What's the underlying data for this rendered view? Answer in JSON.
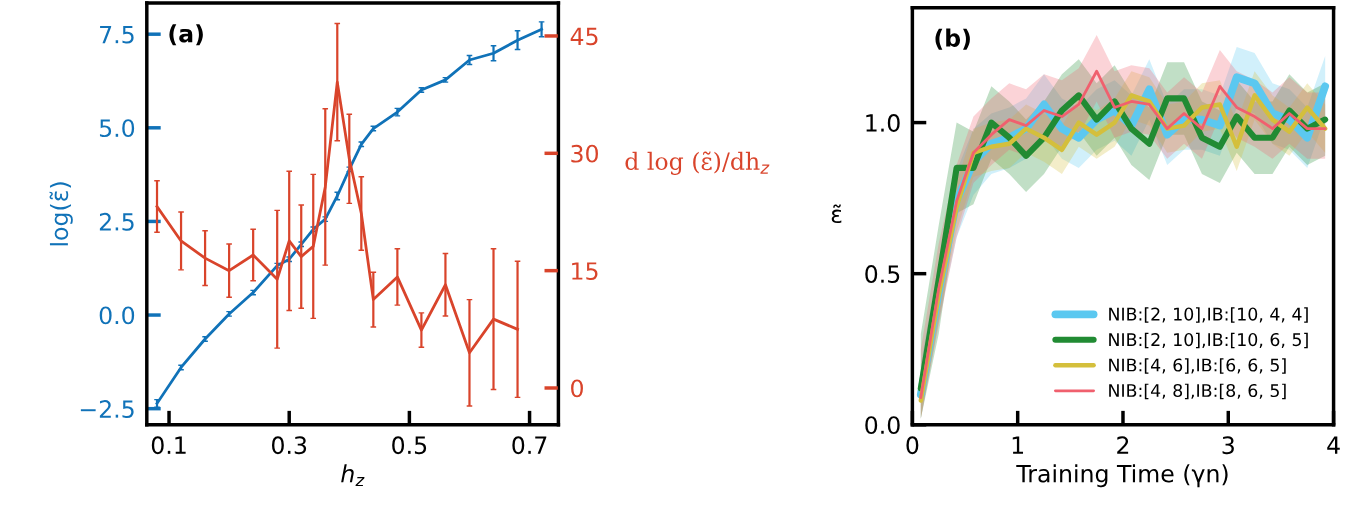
{
  "chart_data": [
    {
      "type": "line",
      "xlabel": "h$_{z}$",
      "ylabel": "log(ε̃)",
      "y2label": "d log (ε̃)/dh$_{z}$",
      "annotations": [
        "(a)"
      ],
      "x": [
        0.08,
        0.12,
        0.16,
        0.2,
        0.24,
        0.28,
        0.3,
        0.32,
        0.34,
        0.36,
        0.38,
        0.4,
        0.42,
        0.44,
        0.48,
        0.52,
        0.56,
        0.6,
        0.64,
        0.68,
        0.72
      ],
      "xlim": [
        0.063,
        0.748
      ],
      "xticks": [
        0.1,
        0.3,
        0.5,
        0.7
      ],
      "ylim": [
        -2.93,
        8.33
      ],
      "yticks": [
        {
          "value": -2.5,
          "label": "−2.5"
        },
        {
          "value": 0,
          "label": "0.0"
        },
        {
          "value": 2.5,
          "label": "2.5"
        },
        {
          "value": 5,
          "label": "5.0"
        },
        {
          "value": 7.5,
          "label": "7.5"
        }
      ],
      "y2lim": [
        -4.7,
        49.2
      ],
      "y2ticks": [
        0,
        15,
        30,
        45
      ],
      "series": [
        {
          "color": "#1072b8",
          "axis": "y",
          "values": [
            -2.36,
            -1.4,
            -0.64,
            0.03,
            0.6,
            1.32,
            1.49,
            1.89,
            2.29,
            2.56,
            3.18,
            3.89,
            4.56,
            4.98,
            5.42,
            6.01,
            6.28,
            6.81,
            6.99,
            7.34,
            7.63
          ],
          "errors": [
            0.1,
            0.06,
            0.06,
            0.06,
            0.06,
            0.06,
            0.06,
            0.06,
            0.06,
            0.06,
            0.1,
            0.06,
            0.06,
            0.06,
            0.1,
            0.06,
            0.06,
            0.12,
            0.2,
            0.25,
            0.2
          ]
        },
        {
          "color": "#d9442b",
          "axis": "y2",
          "x": [
            0.08,
            0.12,
            0.16,
            0.2,
            0.24,
            0.28,
            0.3,
            0.32,
            0.34,
            0.36,
            0.38,
            0.4,
            0.42,
            0.44,
            0.48,
            0.52,
            0.56,
            0.6,
            0.64,
            0.68
          ],
          "values": [
            23.2,
            18.8,
            16.6,
            15.0,
            17.0,
            13.9,
            18.8,
            16.8,
            18.1,
            25.7,
            39.1,
            29.3,
            22.3,
            11.3,
            14.2,
            7.4,
            13.2,
            4.5,
            8.8,
            7.5
          ],
          "errors": [
            3.3,
            3.7,
            3.5,
            3.4,
            3.3,
            8.8,
            8.9,
            6.6,
            9.2,
            10.0,
            7.5,
            5.7,
            4.7,
            3.5,
            3.6,
            2.2,
            4.0,
            6.8,
            9.0,
            8.7
          ]
        }
      ]
    },
    {
      "type": "line",
      "xlabel": "Training Time (γn)",
      "ylabel": "ε̃",
      "annotations": [
        "(b)"
      ],
      "legend": "bottom right",
      "x": [
        0.08,
        0.25,
        0.42,
        0.58,
        0.75,
        0.92,
        1.08,
        1.25,
        1.42,
        1.58,
        1.75,
        1.92,
        2.08,
        2.25,
        2.42,
        2.58,
        2.75,
        2.92,
        3.08,
        3.25,
        3.42,
        3.58,
        3.75,
        3.92
      ],
      "xlim": [
        0,
        4
      ],
      "xticks": [
        0,
        1,
        2,
        3,
        4
      ],
      "ylim": [
        0,
        1.38
      ],
      "yticks": [
        {
          "value": 0,
          "label": "0.0"
        },
        {
          "value": 0.5,
          "label": "0.5"
        },
        {
          "value": 1,
          "label": "1.0"
        }
      ],
      "series": [
        {
          "name": "NIB:[2, 10],IB:[10, 4, 4]",
          "color": "#5bc8f0",
          "values": [
            0.1,
            0.44,
            0.74,
            0.87,
            0.93,
            0.95,
            0.98,
            1.06,
            0.98,
            0.95,
            1.01,
            1.04,
            0.99,
            1.11,
            0.96,
            1.01,
            1.01,
            0.99,
            1.15,
            1.13,
            1.03,
            1.01,
            0.95,
            1.12
          ],
          "lower": [
            0.02,
            0.34,
            0.62,
            0.76,
            0.83,
            0.85,
            0.88,
            0.96,
            0.88,
            0.85,
            0.91,
            0.94,
            0.89,
            1.01,
            0.86,
            0.91,
            0.91,
            0.89,
            1.05,
            1.03,
            0.93,
            0.91,
            0.85,
            1.02
          ],
          "upper": [
            0.2,
            0.54,
            0.84,
            0.98,
            1.03,
            1.05,
            1.08,
            1.16,
            1.08,
            1.05,
            1.11,
            1.14,
            1.09,
            1.21,
            1.06,
            1.11,
            1.11,
            1.09,
            1.25,
            1.23,
            1.13,
            1.11,
            1.05,
            1.22
          ]
        },
        {
          "name": "NIB:[2, 10],IB:[10, 6, 5]",
          "color": "#218b33",
          "values": [
            0.12,
            0.48,
            0.85,
            0.85,
            1.0,
            0.95,
            0.89,
            0.95,
            1.04,
            1.09,
            1.01,
            1.07,
            0.98,
            0.93,
            1.08,
            1.08,
            0.95,
            0.92,
            1.02,
            0.95,
            0.95,
            1.04,
            0.98,
            1.01
          ],
          "lower": [
            0.02,
            0.3,
            0.7,
            0.73,
            0.88,
            0.83,
            0.77,
            0.83,
            0.92,
            0.97,
            0.89,
            0.95,
            0.86,
            0.81,
            0.96,
            0.96,
            0.83,
            0.8,
            0.9,
            0.83,
            0.83,
            0.92,
            0.86,
            0.89
          ],
          "upper": [
            0.3,
            0.66,
            1.0,
            0.97,
            1.12,
            1.07,
            1.01,
            1.07,
            1.16,
            1.21,
            1.13,
            1.19,
            1.1,
            1.05,
            1.2,
            1.2,
            1.07,
            1.04,
            1.14,
            1.07,
            1.07,
            1.16,
            1.1,
            1.13
          ]
        },
        {
          "name": "NIB:[4, 6],IB:[6, 6, 5]",
          "color": "#d4bf3c",
          "values": [
            0.08,
            0.43,
            0.72,
            0.9,
            0.92,
            0.93,
            0.98,
            0.95,
            0.91,
            1.0,
            0.96,
            1.0,
            1.09,
            1.07,
            0.98,
            0.99,
            1.05,
            1.06,
            0.92,
            1.09,
            1.01,
            0.97,
            1.05,
            0.98
          ],
          "lower": [
            0.02,
            0.35,
            0.64,
            0.82,
            0.84,
            0.85,
            0.9,
            0.87,
            0.83,
            0.92,
            0.88,
            0.92,
            1.01,
            0.99,
            0.9,
            0.91,
            0.97,
            0.98,
            0.84,
            1.01,
            0.93,
            0.89,
            0.97,
            0.9
          ],
          "upper": [
            0.16,
            0.51,
            0.8,
            0.98,
            1.0,
            1.01,
            1.06,
            1.03,
            0.99,
            1.08,
            1.04,
            1.08,
            1.17,
            1.15,
            1.06,
            1.07,
            1.13,
            1.14,
            1.0,
            1.17,
            1.09,
            1.05,
            1.13,
            1.06
          ]
        },
        {
          "name": "NIB:[4, 8],IB:[8, 6, 5]",
          "color": "#f0606e",
          "values": [
            0.09,
            0.45,
            0.74,
            0.9,
            0.96,
            1.01,
            0.99,
            1.04,
            1.02,
            1.06,
            1.17,
            1.05,
            1.07,
            1.06,
            0.98,
            1.03,
            0.98,
            1.12,
            1.05,
            1.02,
            0.98,
            1.03,
            0.98,
            0.98
          ],
          "lower": [
            0.02,
            0.33,
            0.62,
            0.8,
            0.86,
            0.91,
            0.89,
            0.94,
            0.92,
            0.96,
            1.07,
            0.95,
            0.97,
            0.96,
            0.88,
            0.93,
            0.88,
            1.02,
            0.95,
            0.92,
            0.88,
            0.93,
            0.88,
            0.88
          ],
          "upper": [
            0.25,
            0.6,
            0.86,
            1.02,
            1.08,
            1.13,
            1.11,
            1.16,
            1.14,
            1.18,
            1.29,
            1.17,
            1.19,
            1.18,
            1.1,
            1.15,
            1.1,
            1.24,
            1.17,
            1.14,
            1.1,
            1.15,
            1.1,
            1.1
          ]
        }
      ]
    }
  ]
}
